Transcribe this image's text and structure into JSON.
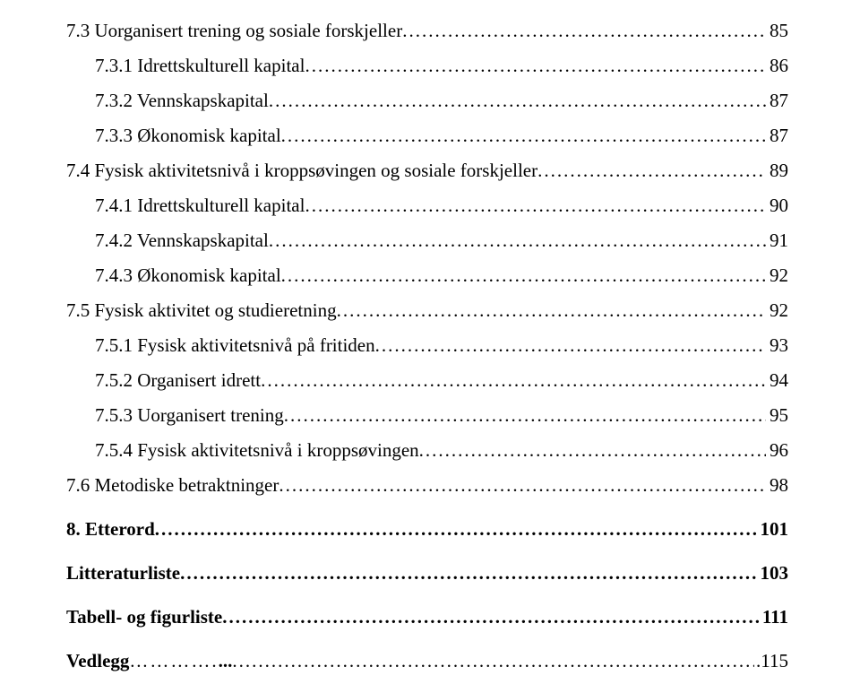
{
  "entries": [
    {
      "level": "level-1",
      "label": "7.3 Uorganisert trening og sosiale forskjeller",
      "page": "85"
    },
    {
      "level": "level-2",
      "label": "7.3.1 Idrettskulturell kapital",
      "page": "86"
    },
    {
      "level": "level-2",
      "label": "7.3.2 Vennskapskapital",
      "page": "87"
    },
    {
      "level": "level-2",
      "label": "7.3.3 Økonomisk kapital",
      "page": "87"
    },
    {
      "level": "level-1",
      "label": "7.4 Fysisk aktivitetsnivå i kroppsøvingen og sosiale forskjeller",
      "page": "89"
    },
    {
      "level": "level-2",
      "label": "7.4.1 Idrettskulturell kapital",
      "page": "90"
    },
    {
      "level": "level-2",
      "label": "7.4.2 Vennskapskapital",
      "page": "91"
    },
    {
      "level": "level-2",
      "label": "7.4.3 Økonomisk kapital",
      "page": "92"
    },
    {
      "level": "level-1",
      "label": "7.5 Fysisk aktivitet og studieretning",
      "page": "92"
    },
    {
      "level": "level-2",
      "label": "7.5.1 Fysisk aktivitetsnivå på fritiden",
      "page": "93"
    },
    {
      "level": "level-2",
      "label": "7.5.2 Organisert idrett",
      "page": "94"
    },
    {
      "level": "level-2",
      "label": "7.5.3 Uorganisert trening",
      "page": "95"
    },
    {
      "level": "level-2",
      "label": "7.5.4 Fysisk aktivitetsnivå i kroppsøvingen",
      "page": "96"
    },
    {
      "level": "level-1",
      "label": "7.6 Metodiske betraktninger",
      "page": "98"
    },
    {
      "level": "level-chapter",
      "label": "8. Etterord",
      "page": "101"
    },
    {
      "level": "level-front",
      "label": "Litteraturliste",
      "page": "103"
    },
    {
      "level": "level-front",
      "label": "Tabell- og figurliste",
      "page": "111"
    }
  ],
  "vedlegg": {
    "label": "Vedlegg",
    "short_dots": "………….",
    "middle": "...",
    "page": ".115"
  }
}
